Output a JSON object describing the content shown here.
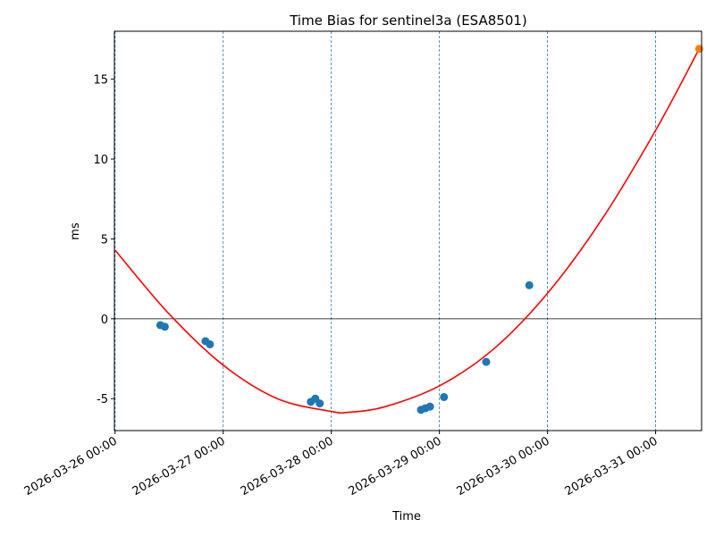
{
  "chart_data": {
    "type": "scatter",
    "title": "Time Bias for sentinel3a (ESA8501)",
    "xlabel": "Time",
    "ylabel": "ms",
    "x_axis_type": "datetime",
    "xlim": [
      "2026-03-25 23:51",
      "2026-03-31 10:12"
    ],
    "ylim": [
      -7.0,
      18.0
    ],
    "x_ticks": [
      "2026-03-26 00:00",
      "2026-03-27 00:00",
      "2026-03-28 00:00",
      "2026-03-29 00:00",
      "2026-03-30 00:00",
      "2026-03-31 00:00"
    ],
    "y_ticks": [
      -5,
      0,
      5,
      10,
      15
    ],
    "grid": "vertical dashed at day boundaries",
    "zero_line": true,
    "series": [
      {
        "kind": "scatter",
        "color": "#1f77b4",
        "points": [
          {
            "x": "2026-03-26 10:03",
            "y": -0.4
          },
          {
            "x": "2026-03-26 11:03",
            "y": -0.5
          },
          {
            "x": "2026-03-26 20:03",
            "y": -1.4
          },
          {
            "x": "2026-03-26 21:03",
            "y": -1.6
          },
          {
            "x": "2026-03-27 19:27",
            "y": -5.2
          },
          {
            "x": "2026-03-27 20:27",
            "y": -5.0
          },
          {
            "x": "2026-03-27 21:26",
            "y": -5.3
          },
          {
            "x": "2026-03-28 19:54",
            "y": -5.7
          },
          {
            "x": "2026-03-28 20:54",
            "y": -5.6
          },
          {
            "x": "2026-03-28 21:55",
            "y": -5.5
          },
          {
            "x": "2026-03-29 01:01",
            "y": -4.9
          },
          {
            "x": "2026-03-29 10:23",
            "y": -2.7
          },
          {
            "x": "2026-03-29 19:57",
            "y": 2.1
          }
        ]
      },
      {
        "kind": "line",
        "color": "#ff0000",
        "curve": "quadratic fit",
        "points": [
          {
            "x": "2026-03-26 00:00",
            "y": 4.3
          },
          {
            "x": "2026-03-26 12:00",
            "y": 0.3
          },
          {
            "x": "2026-03-27 00:00",
            "y": -2.9
          },
          {
            "x": "2026-03-27 12:00",
            "y": -5.0
          },
          {
            "x": "2026-03-28 00:00",
            "y": -5.8
          },
          {
            "x": "2026-03-28 04:00",
            "y": -5.85
          },
          {
            "x": "2026-03-28 12:00",
            "y": -5.5
          },
          {
            "x": "2026-03-29 00:00",
            "y": -4.2
          },
          {
            "x": "2026-03-29 12:00",
            "y": -1.9
          },
          {
            "x": "2026-03-30 00:00",
            "y": 1.6
          },
          {
            "x": "2026-03-30 12:00",
            "y": 6.2
          },
          {
            "x": "2026-03-31 00:00",
            "y": 11.8
          },
          {
            "x": "2026-03-31 09:40",
            "y": 16.9
          }
        ]
      },
      {
        "kind": "scatter",
        "color": "#ff7f0e",
        "points": [
          {
            "x": "2026-03-31 09:40",
            "y": 16.9
          }
        ]
      }
    ]
  }
}
